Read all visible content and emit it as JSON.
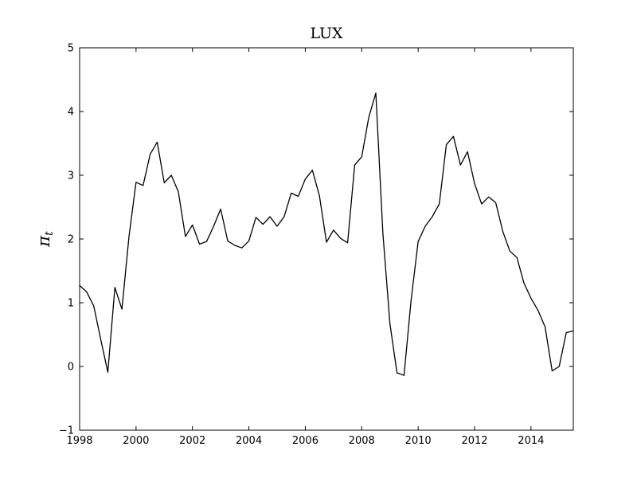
{
  "chart_data": {
    "type": "line",
    "title": "LUX",
    "xlabel": "",
    "ylabel": "π",
    "ylabel_subscript": "t",
    "xlim": [
      1998,
      2015.5
    ],
    "ylim": [
      -1,
      5
    ],
    "x_ticks": [
      1998,
      2000,
      2002,
      2004,
      2006,
      2008,
      2010,
      2012,
      2014
    ],
    "x_tick_labels": [
      "1998",
      "2000",
      "2002",
      "2004",
      "2006",
      "2008",
      "2010",
      "2012",
      "2014"
    ],
    "y_ticks": [
      -1,
      0,
      1,
      2,
      3,
      4,
      5
    ],
    "y_tick_labels": [
      "−1",
      "0",
      "1",
      "2",
      "3",
      "4",
      "5"
    ],
    "grid": false,
    "line_color": "#000000",
    "series": [
      {
        "x": [
          1998.0,
          1998.25,
          1998.5,
          1998.75,
          1999.0,
          1999.25,
          1999.5,
          1999.75,
          2000.0,
          2000.25,
          2000.5,
          2000.75,
          2001.0,
          2001.25,
          2001.5,
          2001.75,
          2002.0,
          2002.25,
          2002.5,
          2002.75,
          2003.0,
          2003.25,
          2003.5,
          2003.75,
          2004.0,
          2004.25,
          2004.5,
          2004.75,
          2005.0,
          2005.25,
          2005.5,
          2005.75,
          2006.0,
          2006.25,
          2006.5,
          2006.75,
          2007.0,
          2007.25,
          2007.5,
          2007.75,
          2008.0,
          2008.25,
          2008.5,
          2008.75,
          2009.0,
          2009.25,
          2009.5,
          2009.75,
          2010.0,
          2010.25,
          2010.5,
          2010.75,
          2011.0,
          2011.25,
          2011.5,
          2011.75,
          2012.0,
          2012.25,
          2012.5,
          2012.75,
          2013.0,
          2013.25,
          2013.5,
          2013.75,
          2014.0,
          2014.25,
          2014.5,
          2014.75,
          2015.0,
          2015.25,
          2015.5
        ],
        "values": [
          1.27,
          1.17,
          0.95,
          0.42,
          -0.09,
          1.24,
          0.9,
          2.04,
          2.89,
          2.84,
          3.33,
          3.52,
          2.88,
          3.0,
          2.74,
          2.04,
          2.22,
          1.92,
          1.96,
          2.2,
          2.47,
          1.97,
          1.9,
          1.86,
          1.97,
          2.34,
          2.23,
          2.35,
          2.2,
          2.35,
          2.72,
          2.67,
          2.94,
          3.08,
          2.68,
          1.95,
          2.14,
          2.01,
          1.94,
          3.16,
          3.29,
          3.91,
          4.29,
          2.09,
          0.67,
          -0.1,
          -0.14,
          1.04,
          1.96,
          2.2,
          2.35,
          2.55,
          3.48,
          3.61,
          3.16,
          3.37,
          2.87,
          2.55,
          2.66,
          2.57,
          2.12,
          1.81,
          1.71,
          1.31,
          1.07,
          0.88,
          0.62,
          -0.07,
          0.0,
          0.53,
          0.56
        ]
      }
    ]
  }
}
